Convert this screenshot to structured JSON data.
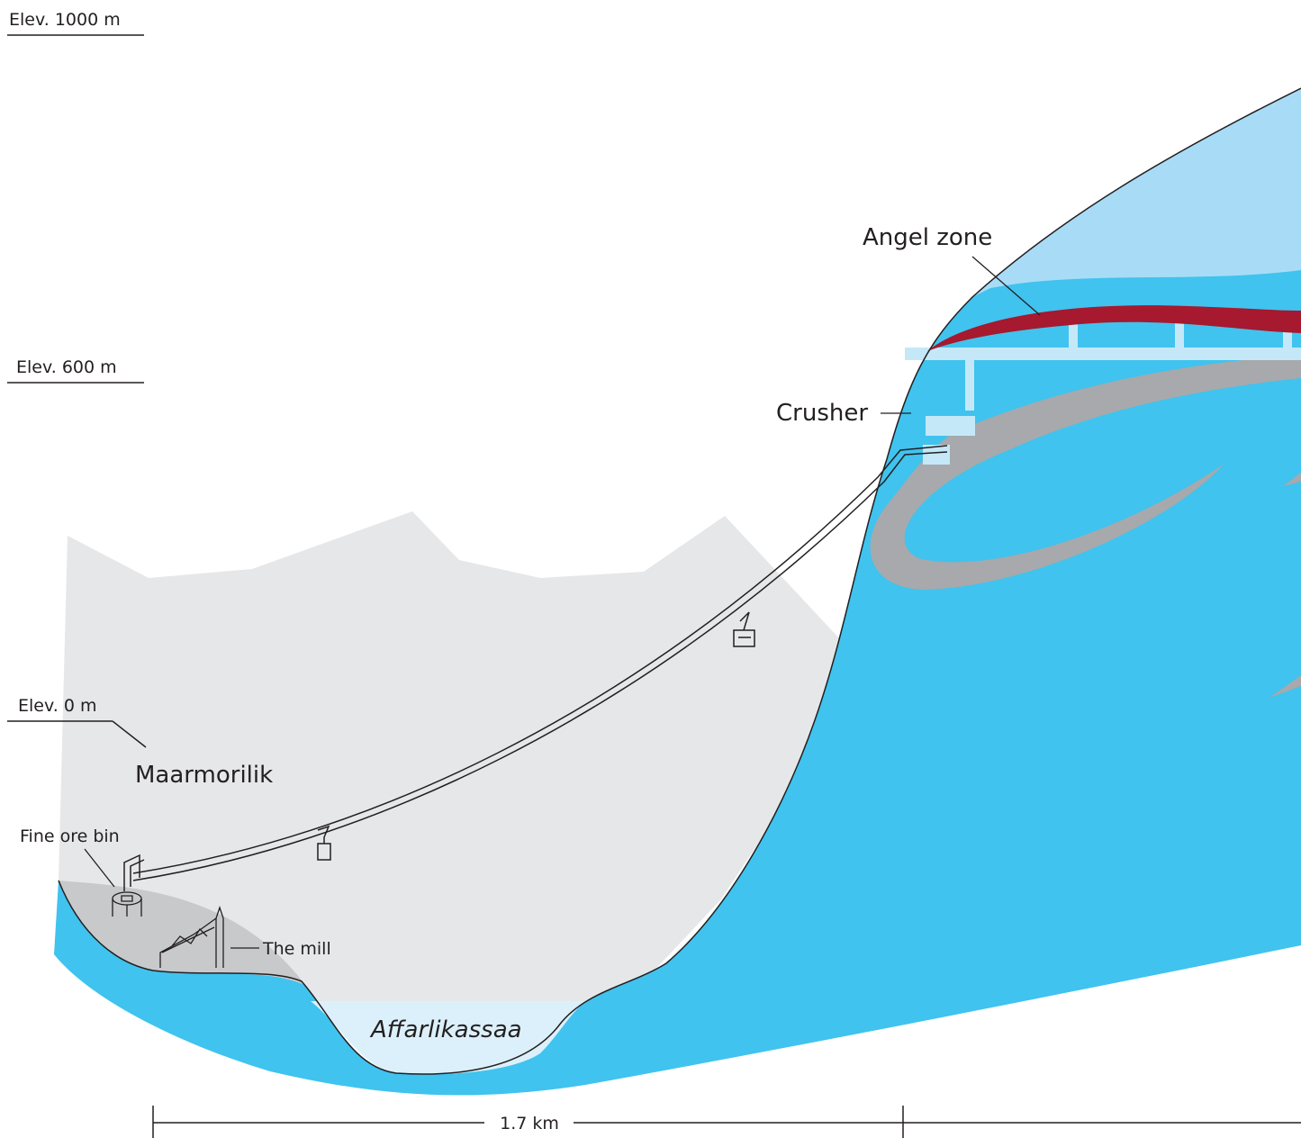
{
  "elevation_markers": [
    {
      "label": "Elev. 1000 m"
    },
    {
      "label": "Elev. 600 m"
    },
    {
      "label": "Elev. 0 m"
    }
  ],
  "labels": {
    "angel_zone": "Angel zone",
    "crusher": "Crusher",
    "town": "Maarmorilik",
    "fine_ore_bin": "Fine ore bin",
    "mill": "The mill",
    "fjord": "Affarlikassaa"
  },
  "scale_bar": {
    "label": "1.7 km"
  }
}
